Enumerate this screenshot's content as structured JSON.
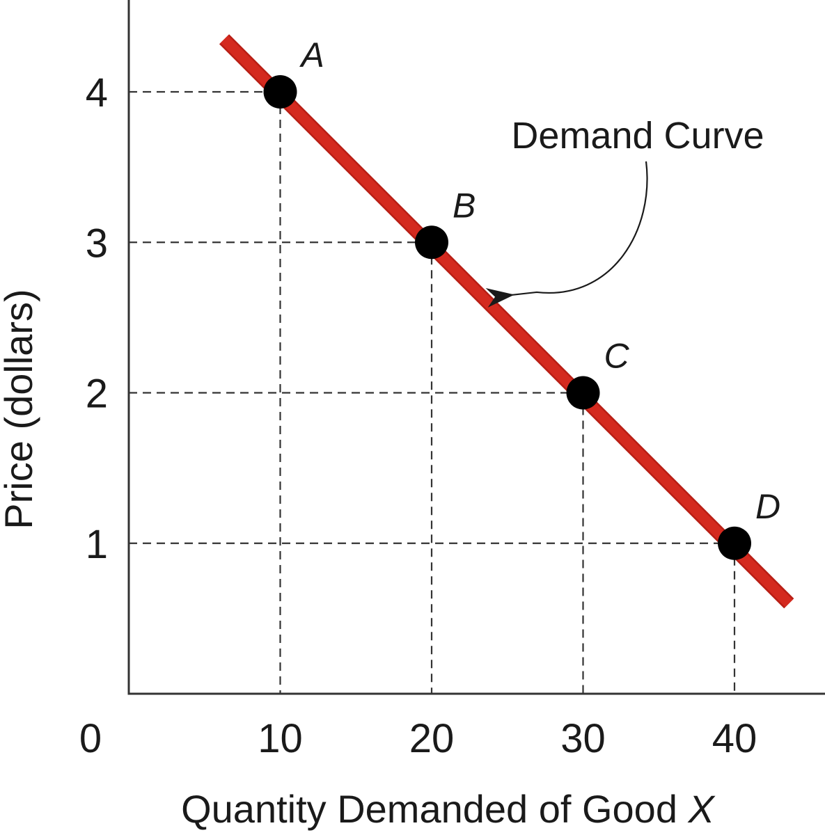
{
  "chart_data": {
    "type": "line",
    "title": "",
    "xlabel": "Quantity Demanded of Good ",
    "xlabel_italic": "X",
    "ylabel": "Price (dollars)",
    "origin_label": "0",
    "x_ticks": [
      "10",
      "20",
      "30",
      "40"
    ],
    "y_ticks": [
      "1",
      "2",
      "3",
      "4"
    ],
    "xlim": [
      0,
      45
    ],
    "ylim": [
      0,
      4.6
    ],
    "grid": false,
    "series": [
      {
        "name": "Demand Curve",
        "color": "#d42a1f",
        "x": [
          6.3,
          43.6
        ],
        "y": [
          4.35,
          0.6
        ]
      }
    ],
    "points": [
      {
        "label": "A",
        "x": 10,
        "y": 4
      },
      {
        "label": "B",
        "x": 20,
        "y": 3
      },
      {
        "label": "C",
        "x": 30,
        "y": 2
      },
      {
        "label": "D",
        "x": 40,
        "y": 1
      }
    ],
    "annotation": {
      "text": "Demand Curve",
      "arrow_target": {
        "x": 25.1,
        "y": 2.65
      }
    },
    "colors": {
      "curve": "#d42a1f",
      "curve_edge": "#b81e15",
      "points": "#000000",
      "guides": "#333333",
      "axis": "#333333"
    }
  }
}
